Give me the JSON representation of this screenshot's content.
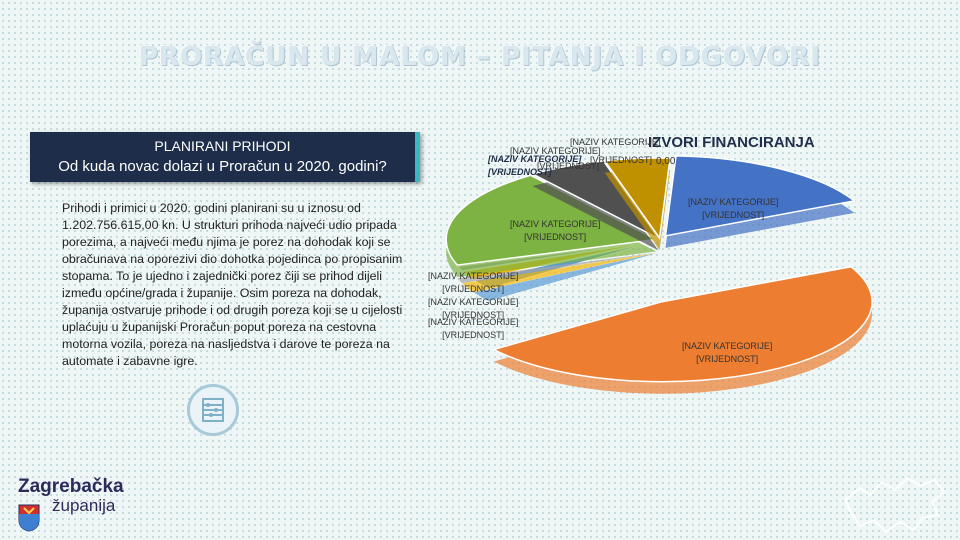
{
  "title": "PRORAČUN U MALOM – PITANJA I ODGOVORI",
  "panel": {
    "line1": "PLANIRANI PRIHODI",
    "line2": "Od kuda novac dolazi u Proračun u 2020. godini?"
  },
  "body_text": "Prihodi i primici u 2020. godini planirani su u iznosu od 1.202.756.615,00 kn. U strukturi prihoda najveći udio pripada porezima, a najveći među njima je porez na dohodak koji se obračunava na oporezivi dio dohotka pojedinca po propisanim stopama. To je ujedno i zajednički porez čiji se prihod dijeli između općine/grada i županije. Osim poreza na dohodak, županija ostvaruje prihode i od drugih poreza koji se u cijelosti uplaćuju u županijski Proračun poput poreza na cestovna motorna vozila, poreza na nasljedstva i darove te poreza na automate i zabavne igre.",
  "logo": {
    "name": "Zagrebačka",
    "sub": "županija"
  },
  "chart_data": {
    "type": "pie",
    "title": "IZVORI FINANCIRANJA",
    "placeholder_category": "[NAZIV KATEGORIJE]",
    "placeholder_value": "[VRIJEDNOST]",
    "zero_label": "0,00",
    "slices": [
      {
        "color": "#4472c4",
        "value": 17
      },
      {
        "color": "#ed7d31",
        "value": 47
      },
      {
        "color": "#5b9bd5",
        "value": 2
      },
      {
        "color": "#f2b705",
        "value": 2
      },
      {
        "color": "#a5a5a5",
        "value": 1
      },
      {
        "color": "#7cb342",
        "value": 20
      },
      {
        "color": "#505050",
        "value": 6
      },
      {
        "color": "#bf9000",
        "value": 5
      }
    ]
  }
}
